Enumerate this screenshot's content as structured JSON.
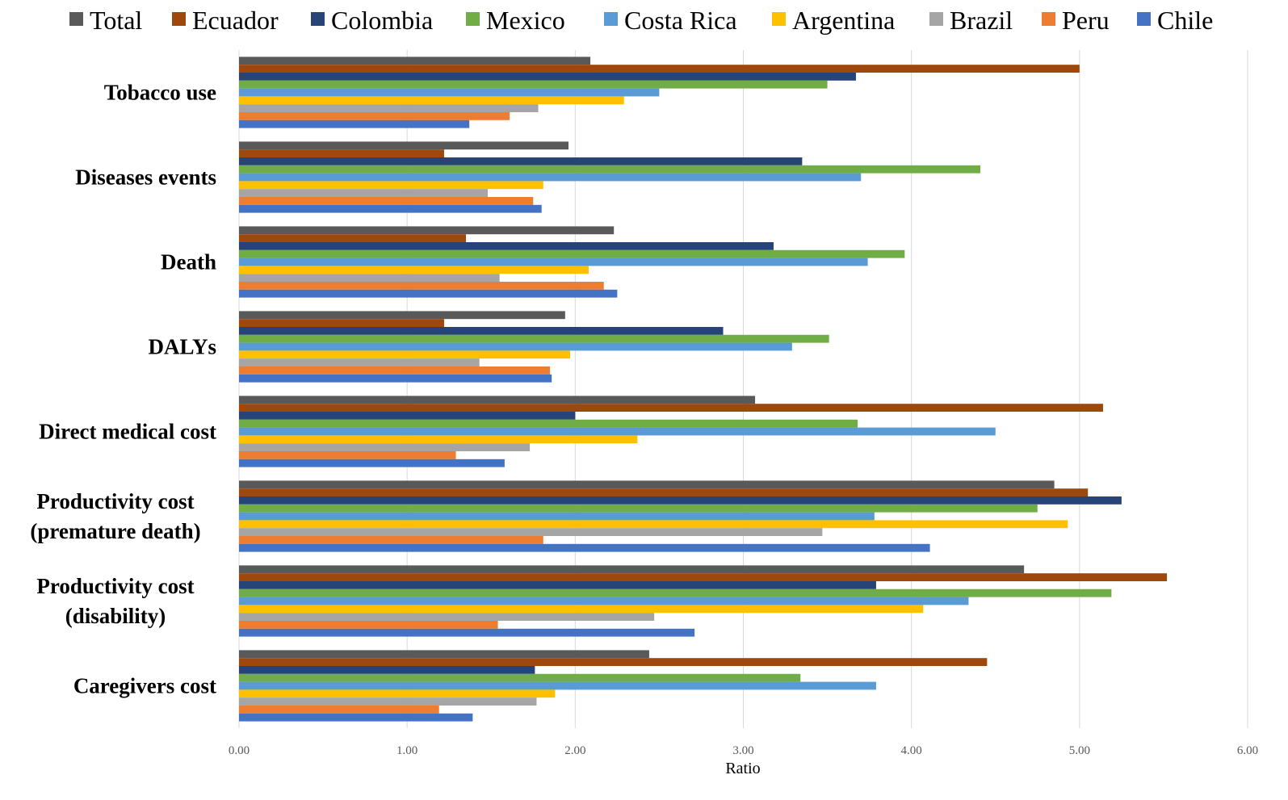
{
  "chart_data": {
    "type": "bar",
    "orientation": "horizontal",
    "title": "",
    "xlabel": "Ratio",
    "ylabel": "",
    "xlim": [
      0,
      6
    ],
    "x_ticks": [
      "0.00",
      "1.00",
      "2.00",
      "3.00",
      "4.00",
      "5.00",
      "6.00"
    ],
    "grid": true,
    "legend_position": "top",
    "categories": [
      {
        "label_lines": [
          "Tobacco use"
        ]
      },
      {
        "label_lines": [
          "Diseases events"
        ]
      },
      {
        "label_lines": [
          "Death"
        ]
      },
      {
        "label_lines": [
          "DALYs"
        ]
      },
      {
        "label_lines": [
          "Direct medical cost"
        ]
      },
      {
        "label_lines": [
          "Productivity cost",
          "(premature death)"
        ]
      },
      {
        "label_lines": [
          "Productivity cost",
          "(disability)"
        ]
      },
      {
        "label_lines": [
          "Caregivers cost"
        ]
      }
    ],
    "series": [
      {
        "name": "Total",
        "color": "#595959",
        "values": [
          2.09,
          1.96,
          2.23,
          1.94,
          3.07,
          4.85,
          4.67,
          2.44
        ]
      },
      {
        "name": "Ecuador",
        "color": "#9E480E",
        "values": [
          5.0,
          1.22,
          1.35,
          1.22,
          5.14,
          5.05,
          5.52,
          4.45
        ]
      },
      {
        "name": "Colombia",
        "color": "#264478",
        "values": [
          3.67,
          3.35,
          3.18,
          2.88,
          2.0,
          5.25,
          3.79,
          1.76
        ]
      },
      {
        "name": "Mexico",
        "color": "#70AD47",
        "values": [
          3.5,
          4.41,
          3.96,
          3.51,
          3.68,
          4.75,
          5.19,
          3.34
        ]
      },
      {
        "name": "Costa Rica",
        "color": "#5B9BD5",
        "values": [
          2.5,
          3.7,
          3.74,
          3.29,
          4.5,
          3.78,
          4.34,
          3.79
        ]
      },
      {
        "name": "Argentina",
        "color": "#FFC000",
        "values": [
          2.29,
          1.81,
          2.08,
          1.97,
          2.37,
          4.93,
          4.07,
          1.88
        ]
      },
      {
        "name": "Brazil",
        "color": "#A5A5A5",
        "values": [
          1.78,
          1.48,
          1.55,
          1.43,
          1.73,
          3.47,
          2.47,
          1.77
        ]
      },
      {
        "name": "Peru",
        "color": "#ED7D31",
        "values": [
          1.61,
          1.75,
          2.17,
          1.85,
          1.29,
          1.81,
          1.54,
          1.19
        ]
      },
      {
        "name": "Chile",
        "color": "#4472C4",
        "values": [
          1.37,
          1.8,
          2.25,
          1.86,
          1.58,
          4.11,
          2.71,
          1.39
        ]
      }
    ]
  }
}
